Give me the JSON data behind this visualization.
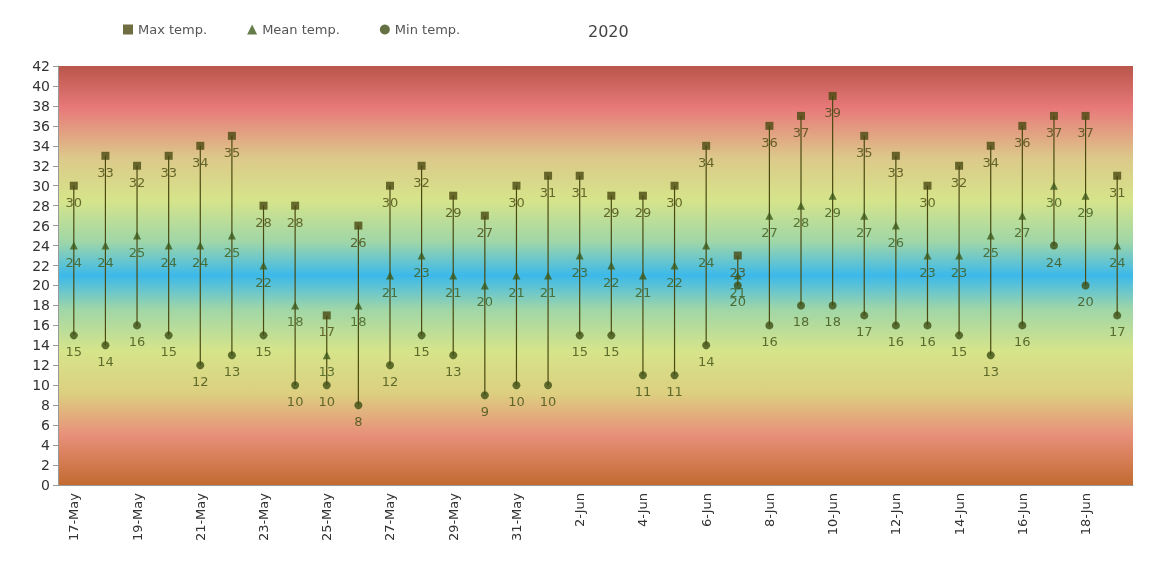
{
  "chart_data": {
    "type": "scatter",
    "title": "2020",
    "categories": [
      "17-May",
      null,
      "19-May",
      null,
      "21-May",
      null,
      "23-May",
      null,
      "25-May",
      null,
      "27-May",
      null,
      "29-May",
      null,
      "31-May",
      null,
      "2-Jun",
      null,
      "4-Jun",
      null,
      "6-Jun",
      null,
      "8-Jun",
      null,
      "10-Jun",
      null,
      "12-Jun",
      null,
      "14-Jun",
      null,
      "16-Jun",
      null,
      "18-Jun",
      null
    ],
    "series": [
      {
        "name": "Max temp.",
        "color": "#4a4a12",
        "marker": "square",
        "values": [
          30,
          33,
          32,
          33,
          34,
          35,
          28,
          28,
          17,
          26,
          30,
          32,
          29,
          27,
          30,
          31,
          31,
          29,
          29,
          30,
          34,
          23,
          36,
          37,
          39,
          35,
          33,
          30,
          32,
          34,
          36,
          37,
          37,
          31
        ]
      },
      {
        "name": "Mean temp.",
        "color": "#3f5a1c",
        "marker": "triangle",
        "values": [
          24,
          24,
          25,
          24,
          24,
          25,
          22,
          18,
          13,
          18,
          21,
          23,
          21,
          20,
          21,
          21,
          23,
          22,
          21,
          22,
          24,
          21,
          27,
          28,
          29,
          27,
          26,
          23,
          23,
          25,
          27,
          30,
          29,
          24
        ]
      },
      {
        "name": "Min temp.",
        "color": "#3d4f14",
        "marker": "circle",
        "values": [
          15,
          14,
          16,
          15,
          12,
          13,
          15,
          10,
          10,
          8,
          12,
          15,
          13,
          9,
          10,
          10,
          15,
          15,
          11,
          11,
          14,
          20,
          16,
          18,
          18,
          17,
          16,
          16,
          15,
          13,
          16,
          24,
          20,
          17
        ]
      }
    ],
    "ylim": [
      0,
      42
    ],
    "yticks": [
      0,
      2,
      4,
      6,
      8,
      10,
      12,
      14,
      16,
      18,
      20,
      22,
      24,
      26,
      28,
      30,
      32,
      34,
      36,
      38,
      40,
      42
    ],
    "data_labels": true,
    "legend": "top left",
    "grid": false
  }
}
